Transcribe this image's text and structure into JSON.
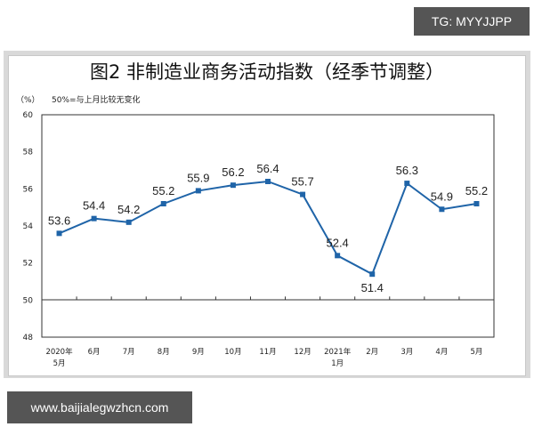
{
  "watermark_top": "TG: MYYJJPP",
  "watermark_bottom": "www.baijialegwzhcn.com",
  "figure": {
    "title": "图2 非制造业商务活动指数（经季节调整）",
    "unit_label": "（%）",
    "note": "50%=与上月比较无变化"
  },
  "colors": {
    "line": "#1f64a8",
    "marker": "#1f64a8"
  },
  "chart_data": {
    "type": "line",
    "title": "图2 非制造业商务活动指数（经季节调整）",
    "xlabel": "",
    "ylabel": "（%）",
    "annotation": "50%=与上月比较无变化",
    "categories": [
      "2020年5月",
      "6月",
      "7月",
      "8月",
      "9月",
      "10月",
      "11月",
      "12月",
      "2021年1月",
      "2月",
      "3月",
      "4月",
      "5月"
    ],
    "x_tick_lines": [
      [
        "2020年",
        "5月"
      ],
      [
        "6月"
      ],
      [
        "7月"
      ],
      [
        "8月"
      ],
      [
        "9月"
      ],
      [
        "10月"
      ],
      [
        "11月"
      ],
      [
        "12月"
      ],
      [
        "2021年",
        "1月"
      ],
      [
        "2月"
      ],
      [
        "3月"
      ],
      [
        "4月"
      ],
      [
        "5月"
      ]
    ],
    "series": [
      {
        "name": "非制造业商务活动指数",
        "values": [
          53.6,
          54.4,
          54.2,
          55.2,
          55.9,
          56.2,
          56.4,
          55.7,
          52.4,
          51.4,
          56.3,
          54.9,
          55.2
        ]
      }
    ],
    "data_labels": [
      "53.6",
      "54.4",
      "54.2",
      "55.2",
      "55.9",
      "56.2",
      "56.4",
      "55.7",
      "52.4",
      "51.4",
      "56.3",
      "54.9",
      "55.2"
    ],
    "ylim": [
      48,
      60
    ],
    "yticks": [
      48,
      50,
      52,
      54,
      56,
      58,
      60
    ],
    "reference_line": 50,
    "grid": false,
    "legend": "none"
  }
}
